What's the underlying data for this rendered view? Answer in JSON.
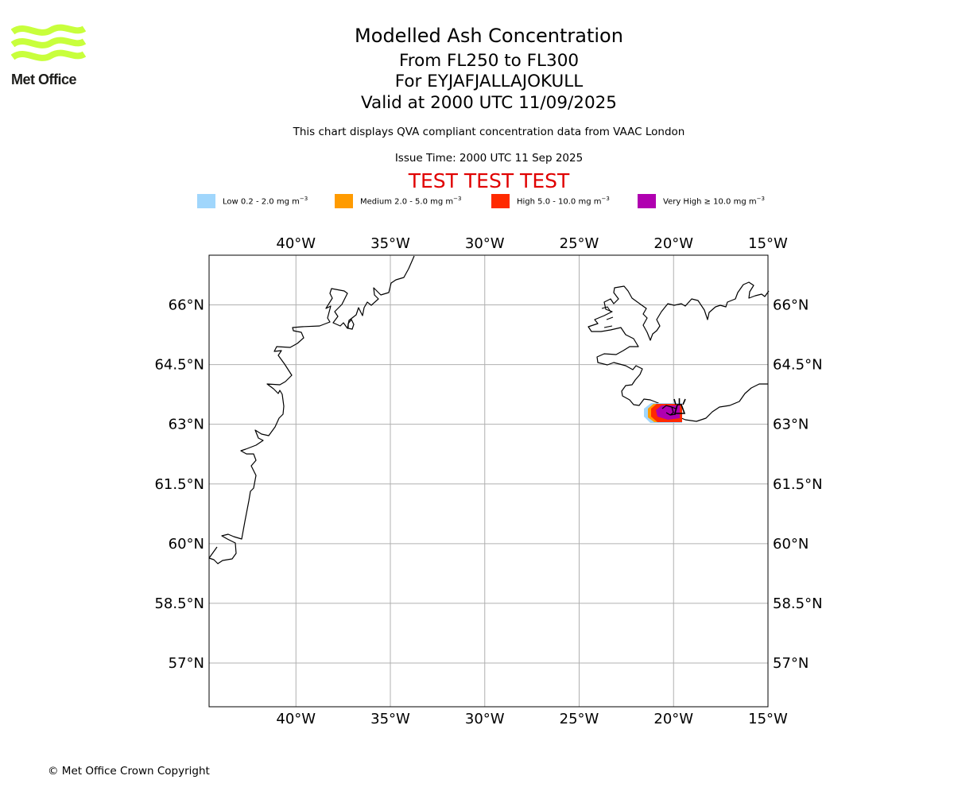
{
  "logo": {
    "text": "Met Office",
    "color": "#c8ff3c"
  },
  "title": "Modelled Ash Concentration",
  "subtitle_levels": "From FL250 to FL300",
  "subtitle_volcano": "For EYJAFJALLAJOKULL",
  "subtitle_valid": "Valid at 2000 UTC 11/09/2025",
  "note": "This chart displays QVA compliant concentration data from VAAC London",
  "issue_time": "Issue Time: 2000 UTC 11 Sep 2025",
  "test_banner": "TEST TEST TEST",
  "legend": [
    {
      "label": "Low 0.2 - 2.0 mg m",
      "color": "#a0d6fc"
    },
    {
      "label": "Medium 2.0 - 5.0 mg m",
      "color": "#ff9b00"
    },
    {
      "label": "High 5.0 - 10.0 mg m",
      "color": "#ff2a00"
    },
    {
      "label": "Very High ≥ 10.0 mg m",
      "color": "#b000b0"
    }
  ],
  "legend_unit_exponent": "−3",
  "map": {
    "lon_range": [
      -44.6,
      -15.0
    ],
    "lat_range": [
      55.9,
      67.25
    ],
    "lon_ticks": [
      {
        "value": -40,
        "label": "40°W"
      },
      {
        "value": -35,
        "label": "35°W"
      },
      {
        "value": -30,
        "label": "30°W"
      },
      {
        "value": -25,
        "label": "25°W"
      },
      {
        "value": -20,
        "label": "20°W"
      },
      {
        "value": -15,
        "label": "15°W"
      }
    ],
    "lat_ticks": [
      {
        "value": 66,
        "label": "66°N"
      },
      {
        "value": 64.5,
        "label": "64.5°N"
      },
      {
        "value": 63,
        "label": "63°N"
      },
      {
        "value": 61.5,
        "label": "61.5°N"
      },
      {
        "value": 60,
        "label": "60°N"
      },
      {
        "value": 58.5,
        "label": "58.5°N"
      },
      {
        "value": 57,
        "label": "57°N"
      }
    ],
    "grid": true,
    "volcano": {
      "name": "EYJAFJALLAJOKULL",
      "lon": -19.6,
      "lat": 63.63
    }
  },
  "copyright": "© Met Office Crown Copyright"
}
